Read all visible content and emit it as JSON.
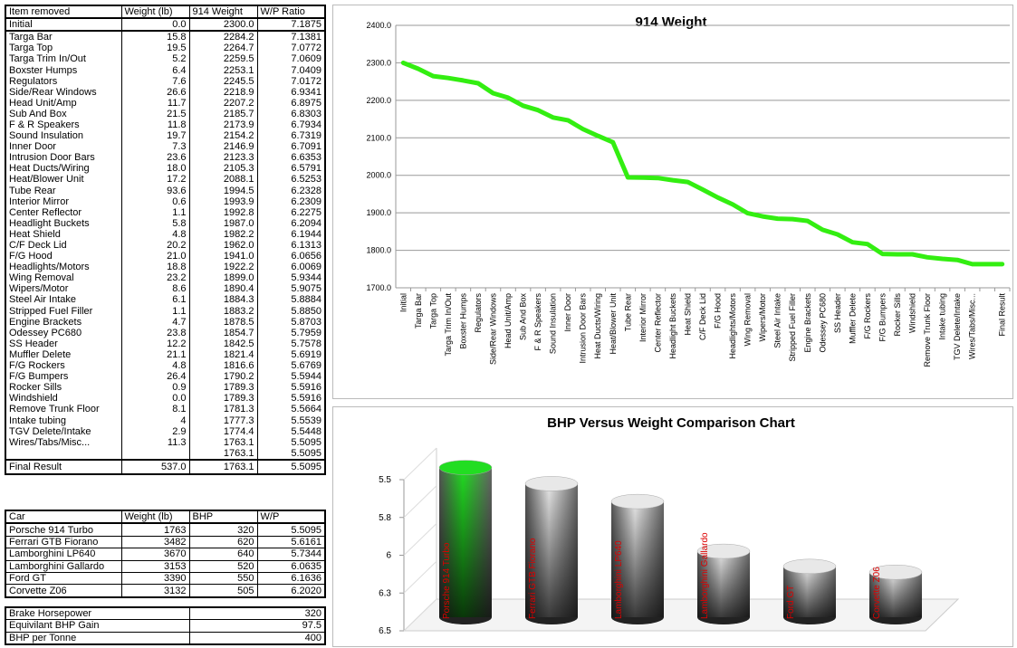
{
  "weight_table": {
    "header": [
      "Item removed",
      "Weight (lb)",
      "914 Weight",
      "W/P Ratio"
    ],
    "rows": [
      [
        "Initial",
        "0.0",
        "2300.0",
        "7.1875"
      ],
      [
        "Targa Bar",
        "15.8",
        "2284.2",
        "7.1381"
      ],
      [
        "Targa Top",
        "19.5",
        "2264.7",
        "7.0772"
      ],
      [
        "Targa Trim In/Out",
        "5.2",
        "2259.5",
        "7.0609"
      ],
      [
        "Boxster Humps",
        "6.4",
        "2253.1",
        "7.0409"
      ],
      [
        "Regulators",
        "7.6",
        "2245.5",
        "7.0172"
      ],
      [
        "Side/Rear Windows",
        "26.6",
        "2218.9",
        "6.9341"
      ],
      [
        "Head Unit/Amp",
        "11.7",
        "2207.2",
        "6.8975"
      ],
      [
        "Sub And Box",
        "21.5",
        "2185.7",
        "6.8303"
      ],
      [
        "F & R Speakers",
        "11.8",
        "2173.9",
        "6.7934"
      ],
      [
        "Sound Insulation",
        "19.7",
        "2154.2",
        "6.7319"
      ],
      [
        "Inner Door",
        "7.3",
        "2146.9",
        "6.7091"
      ],
      [
        "Intrusion Door Bars",
        "23.6",
        "2123.3",
        "6.6353"
      ],
      [
        "Heat Ducts/Wiring",
        "18.0",
        "2105.3",
        "6.5791"
      ],
      [
        "Heat/Blower Unit",
        "17.2",
        "2088.1",
        "6.5253"
      ],
      [
        "Tube Rear",
        "93.6",
        "1994.5",
        "6.2328"
      ],
      [
        "Interior Mirror",
        "0.6",
        "1993.9",
        "6.2309"
      ],
      [
        "Center Reflector",
        "1.1",
        "1992.8",
        "6.2275"
      ],
      [
        "Headlight Buckets",
        "5.8",
        "1987.0",
        "6.2094"
      ],
      [
        "Heat Shield",
        "4.8",
        "1982.2",
        "6.1944"
      ],
      [
        "C/F Deck Lid",
        "20.2",
        "1962.0",
        "6.1313"
      ],
      [
        "F/G Hood",
        "21.0",
        "1941.0",
        "6.0656"
      ],
      [
        "Headlights/Motors",
        "18.8",
        "1922.2",
        "6.0069"
      ],
      [
        "Wing Removal",
        "23.2",
        "1899.0",
        "5.9344"
      ],
      [
        "Wipers/Motor",
        "8.6",
        "1890.4",
        "5.9075"
      ],
      [
        "Steel Air Intake",
        "6.1",
        "1884.3",
        "5.8884"
      ],
      [
        "Stripped Fuel Filler",
        "1.1",
        "1883.2",
        "5.8850"
      ],
      [
        "Engine Brackets",
        "4.7",
        "1878.5",
        "5.8703"
      ],
      [
        "Odessey PC680",
        "23.8",
        "1854.7",
        "5.7959"
      ],
      [
        "SS Header",
        "12.2",
        "1842.5",
        "5.7578"
      ],
      [
        "Muffler Delete",
        "21.1",
        "1821.4",
        "5.6919"
      ],
      [
        "F/G Rockers",
        "4.8",
        "1816.6",
        "5.6769"
      ],
      [
        "F/G Bumpers",
        "26.4",
        "1790.2",
        "5.5944"
      ],
      [
        "Rocker Sills",
        "0.9",
        "1789.3",
        "5.5916"
      ],
      [
        "Windshield",
        "0.0",
        "1789.3",
        "5.5916"
      ],
      [
        "Remove Trunk Floor",
        "8.1",
        "1781.3",
        "5.5664"
      ],
      [
        "Intake tubing",
        "4",
        "1777.3",
        "5.5539"
      ],
      [
        "TGV Delete/Intake",
        "2.9",
        "1774.4",
        "5.5448"
      ],
      [
        "Wires/Tabs/Misc...",
        "11.3",
        "1763.1",
        "5.5095"
      ],
      [
        null,
        null,
        "1763.1",
        "5.5095"
      ],
      [
        "Final Result",
        "537.0",
        "1763.1",
        "5.5095"
      ]
    ]
  },
  "car_table": {
    "header": [
      "Car",
      "Weight (lb)",
      "BHP",
      "W/P"
    ],
    "rows": [
      [
        "Porsche 914 Turbo",
        "1763",
        "320",
        "5.5095"
      ],
      [
        "Ferrari GTB Fiorano",
        "3482",
        "620",
        "5.6161"
      ],
      [
        "Lamborghini LP640",
        "3670",
        "640",
        "5.7344"
      ],
      [
        "Lamborghini Gallardo",
        "3153",
        "520",
        "6.0635"
      ],
      [
        "Ford GT",
        "3390",
        "550",
        "6.1636"
      ],
      [
        "Corvette Z06",
        "3132",
        "505",
        "6.2020"
      ]
    ]
  },
  "summary_table": {
    "rows": [
      [
        "Brake Horsepower",
        "320"
      ],
      [
        "Equivilant BHP Gain",
        "97.5"
      ],
      [
        "BHP per Tonne",
        "400"
      ]
    ]
  },
  "chart_data": [
    {
      "type": "line",
      "title": "914 Weight",
      "color": "#33ee11",
      "grid": true,
      "categories": [
        "Initial",
        "Targa Bar",
        "Targa Top",
        "Targa Trim In/Out",
        "Boxster Humps",
        "Regulators",
        "Side/Rear Windows",
        "Head Unit/Amp",
        "Sub And Box",
        "F & R Speakers",
        "Sound Insulation",
        "Inner Door",
        "Intrusion Door Bars",
        "Heat Ducts/Wiring",
        "Heat/Blower Unit",
        "Tube Rear",
        "Interior Mirror",
        "Center Reflector",
        "Headlight Buckets",
        "Heat Shield",
        "C/F Deck Lid",
        "F/G Hood",
        "Headlights/Motors",
        "Wing Removal",
        "Wipers/Motor",
        "Steel Air Intake",
        "Stripped Fuel Filler",
        "Engine Brackets",
        "Odessey PC680",
        "SS Header",
        "Muffler Delete",
        "F/G Rockers",
        "F/G Bumpers",
        "Rocker Sills",
        "Windshield",
        "Remove Trunk Floor",
        "Intake tubing",
        "TGV Delete/Intake",
        "Wires/Tabs/Misc...",
        null,
        "Final Result"
      ],
      "values": [
        2300.0,
        2284.2,
        2264.7,
        2259.5,
        2253.1,
        2245.5,
        2218.9,
        2207.2,
        2185.7,
        2173.9,
        2154.2,
        2146.9,
        2123.3,
        2105.3,
        2088.1,
        1994.5,
        1993.9,
        1992.8,
        1987.0,
        1982.2,
        1962.0,
        1941.0,
        1922.2,
        1899.0,
        1890.4,
        1884.3,
        1883.2,
        1878.5,
        1854.7,
        1842.5,
        1821.4,
        1816.6,
        1790.2,
        1789.3,
        1789.3,
        1781.3,
        1777.3,
        1774.4,
        1763.1,
        1763.1,
        1763.1
      ],
      "ylim": [
        1700,
        2400
      ],
      "yticks": [
        {
          "value": 1700,
          "label": "1700.0"
        },
        {
          "value": 1800,
          "label": "1800.0"
        },
        {
          "value": 1900,
          "label": "1900.0"
        },
        {
          "value": 2000,
          "label": "2000.0"
        },
        {
          "value": 2100,
          "label": "2100.0"
        },
        {
          "value": 2200,
          "label": "2200.0"
        },
        {
          "value": 2300,
          "label": "2300.0"
        },
        {
          "value": 2400,
          "label": "2400.0"
        }
      ]
    },
    {
      "type": "bar3d",
      "title": "BHP Versus Weight Comparison Chart",
      "categories": [
        "Porsche 914 Turbo",
        "Ferrari GTB Fiorano",
        "Lamborghini LP640",
        "Lamborghini Gallardo",
        "Ford GT",
        "Corvette Z06"
      ],
      "values": [
        5.5095,
        5.6161,
        5.7344,
        6.0635,
        6.1636,
        6.202
      ],
      "colors": [
        "#22dd22",
        "#e8e8e8",
        "#e8e8e8",
        "#e8e8e8",
        "#e8e8e8",
        "#e8e8e8"
      ],
      "label_color": "#dd0000",
      "ylim": [
        6.5,
        5.5
      ],
      "yticks": [
        5.5,
        {
          "value": 5.75,
          "label": "5.8"
        },
        6.0,
        {
          "value": 6.25,
          "label": "6.3"
        },
        6.5
      ]
    }
  ]
}
